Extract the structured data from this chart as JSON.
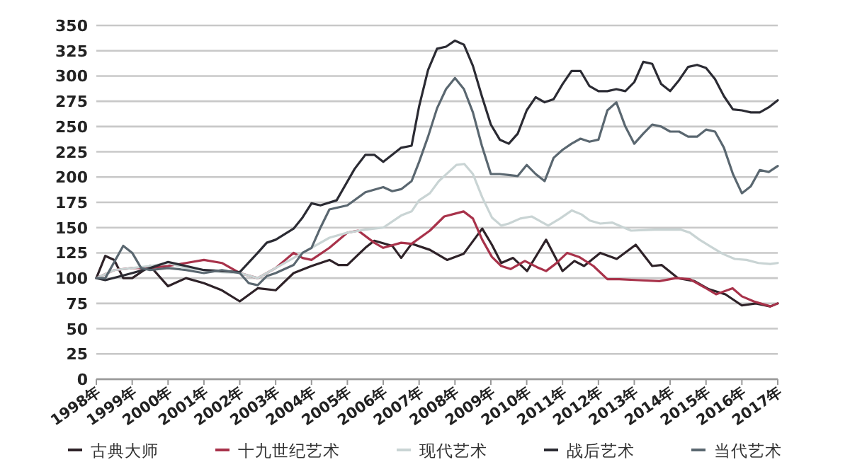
{
  "chart_data": {
    "type": "line",
    "xlim": [
      1998,
      2017
    ],
    "ylim": [
      0,
      350
    ],
    "yticks": [
      0,
      25,
      50,
      75,
      100,
      125,
      150,
      175,
      200,
      225,
      250,
      275,
      300,
      325,
      350
    ],
    "xticks": [
      {
        "value": 1998,
        "label": "1998年"
      },
      {
        "value": 1999,
        "label": "1999年"
      },
      {
        "value": 2000,
        "label": "2000年"
      },
      {
        "value": 2001,
        "label": "2001年"
      },
      {
        "value": 2002,
        "label": "2002年"
      },
      {
        "value": 2003,
        "label": "2003年"
      },
      {
        "value": 2004,
        "label": "2004年"
      },
      {
        "value": 2005,
        "label": "2005年"
      },
      {
        "value": 2006,
        "label": "2006年"
      },
      {
        "value": 2007,
        "label": "2007年"
      },
      {
        "value": 2008,
        "label": "2008年"
      },
      {
        "value": 2009,
        "label": "2009年"
      },
      {
        "value": 2010,
        "label": "2010年"
      },
      {
        "value": 2011,
        "label": "2011年"
      },
      {
        "value": 2012,
        "label": "2012年"
      },
      {
        "value": 2013,
        "label": "2013年"
      },
      {
        "value": 2014,
        "label": "2014年"
      },
      {
        "value": 2015,
        "label": "2015年"
      },
      {
        "value": 2016,
        "label": "2016年"
      },
      {
        "value": 2017,
        "label": "2017年"
      }
    ],
    "grid": "y",
    "legend": "bottom",
    "marker": "none",
    "line_style": "solid",
    "series": [
      {
        "name": "古典大师",
        "color": "#2e2228",
        "x": [
          1998,
          1998.25,
          1998.5,
          1998.75,
          1999,
          1999.5,
          2000,
          2000.5,
          2001,
          2001.5,
          2002,
          2002.5,
          2003,
          2003.5,
          2004,
          2004.5,
          2004.75,
          2005,
          2005.5,
          2005.75,
          2006.25,
          2006.5,
          2006.79,
          2007.3,
          2007.78,
          2008.24,
          2008.76,
          2009.03,
          2009.29,
          2009.62,
          2010.01,
          2010.54,
          2011,
          2011.33,
          2011.6,
          2012.05,
          2012.51,
          2013.04,
          2013.5,
          2013.76,
          2014.22,
          2014.68,
          2015.08,
          2015.54,
          2016,
          2016.39,
          2016.79,
          2017
        ],
        "values": [
          100,
          122,
          118,
          100,
          100,
          112,
          92,
          100,
          95,
          88,
          77,
          90,
          88,
          105,
          112,
          118,
          113,
          113,
          130,
          137,
          132,
          120,
          134,
          128,
          118,
          124,
          149,
          133,
          115,
          120,
          107,
          138,
          107,
          117,
          112,
          125,
          119,
          133,
          112,
          113,
          100,
          97,
          89,
          84,
          73,
          75,
          72,
          75
        ]
      },
      {
        "name": "十九世纪艺术",
        "color": "#a8324a",
        "x": [
          1998,
          1998.5,
          1999,
          1999.5,
          2000,
          2000.5,
          2001,
          2001.5,
          2002,
          2002.5,
          2003,
          2003.5,
          2003.75,
          2004,
          2004.5,
          2005,
          2005.3,
          2005.75,
          2006,
          2006.5,
          2006.79,
          2007.3,
          2007.7,
          2008.24,
          2008.5,
          2008.76,
          2009.03,
          2009.29,
          2009.55,
          2009.95,
          2010.28,
          2010.54,
          2010.8,
          2011.13,
          2011.46,
          2011.86,
          2012.25,
          2012.58,
          2013.1,
          2013.7,
          2014.16,
          2014.55,
          2014.95,
          2015.28,
          2015.74,
          2016,
          2016.33,
          2016.8,
          2017
        ],
        "values": [
          100,
          108,
          110,
          110,
          112,
          115,
          118,
          115,
          105,
          100,
          110,
          125,
          120,
          118,
          130,
          145,
          147,
          135,
          130,
          135,
          134,
          147,
          161,
          166,
          159,
          138,
          121,
          112,
          109,
          117,
          111,
          107,
          114,
          125,
          121,
          112,
          99,
          99,
          98,
          97,
          100,
          99,
          91,
          84,
          90,
          82,
          77,
          72,
          75
        ]
      },
      {
        "name": "现代艺术",
        "color": "#c9d4d4",
        "x": [
          1998,
          1998.5,
          1999,
          1999.5,
          2000,
          2000.5,
          2001,
          2001.5,
          2002,
          2002.5,
          2003,
          2003.5,
          2004,
          2004.5,
          2005,
          2005.5,
          2006,
          2006.5,
          2006.79,
          2007,
          2007.3,
          2007.55,
          2008.04,
          2008.26,
          2008.5,
          2008.76,
          2009.03,
          2009.29,
          2009.5,
          2009.82,
          2010.14,
          2010.34,
          2010.6,
          2010.93,
          2011.26,
          2011.53,
          2011.76,
          2012.05,
          2012.38,
          2012.64,
          2012.91,
          2013.57,
          2014,
          2014.29,
          2014.55,
          2014.82,
          2015.14,
          2015.47,
          2015.8,
          2016.13,
          2016.46,
          2016.79,
          2017
        ],
        "values": [
          100,
          108,
          110,
          112,
          115,
          110,
          108,
          106,
          105,
          100,
          110,
          120,
          130,
          140,
          145,
          148,
          150,
          162,
          166,
          177,
          184,
          196,
          212,
          213,
          203,
          180,
          160,
          152,
          154,
          159,
          161,
          157,
          152,
          159,
          167,
          163,
          157,
          154,
          155,
          151,
          147,
          148,
          148,
          148,
          145,
          138,
          131,
          124,
          119,
          118,
          115,
          114,
          115
        ]
      },
      {
        "name": "战后艺术",
        "color": "#2b2b33",
        "x": [
          1998,
          1998.25,
          1999,
          1999.5,
          2000,
          2000.5,
          2001,
          2001.5,
          2002,
          2002.5,
          2002.75,
          2003,
          2003.5,
          2003.75,
          2004,
          2004.25,
          2004.7,
          2005.2,
          2005.5,
          2005.75,
          2006,
          2006.25,
          2006.5,
          2006.79,
          2007,
          2007.25,
          2007.5,
          2007.75,
          2008,
          2008.25,
          2008.5,
          2008.75,
          2009,
          2009.25,
          2009.5,
          2009.75,
          2010,
          2010.25,
          2010.5,
          2010.75,
          2011,
          2011.25,
          2011.5,
          2011.75,
          2012,
          2012.25,
          2012.5,
          2012.75,
          2013,
          2013.25,
          2013.5,
          2013.75,
          2014,
          2014.25,
          2014.5,
          2014.75,
          2015,
          2015.25,
          2015.5,
          2015.75,
          2016,
          2016.25,
          2016.5,
          2016.75,
          2017
        ],
        "values": [
          100,
          98,
          105,
          110,
          116,
          112,
          108,
          107,
          106,
          125,
          135,
          138,
          149,
          160,
          174,
          172,
          177,
          208,
          222,
          222,
          215,
          222,
          229,
          231,
          270,
          306,
          327,
          329,
          335,
          331,
          310,
          280,
          252,
          237,
          233,
          243,
          266,
          279,
          274,
          277,
          292,
          305,
          305,
          290,
          285,
          285,
          287,
          285,
          294,
          314,
          312,
          292,
          285,
          296,
          309,
          311,
          308,
          297,
          280,
          267,
          266,
          264,
          264,
          269,
          276
        ]
      },
      {
        "name": "当代艺术",
        "color": "#5a6770",
        "x": [
          1998,
          1998.25,
          1998.75,
          1999,
          1999.25,
          1999.5,
          2000,
          2000.5,
          2001,
          2001.5,
          2002,
          2002.25,
          2002.5,
          2002.75,
          2003,
          2003.5,
          2003.75,
          2004,
          2004.25,
          2004.5,
          2005,
          2005.5,
          2006,
          2006.25,
          2006.5,
          2006.79,
          2007,
          2007.25,
          2007.5,
          2007.75,
          2008,
          2008.25,
          2008.5,
          2008.75,
          2009,
          2009.25,
          2009.5,
          2009.75,
          2010,
          2010.25,
          2010.5,
          2010.75,
          2011,
          2011.25,
          2011.5,
          2011.75,
          2012,
          2012.25,
          2012.5,
          2012.75,
          2013,
          2013.25,
          2013.5,
          2013.75,
          2014,
          2014.25,
          2014.5,
          2014.75,
          2015,
          2015.25,
          2015.5,
          2015.75,
          2016,
          2016.25,
          2016.5,
          2016.75,
          2017
        ],
        "values": [
          100,
          100,
          132,
          125,
          110,
          108,
          110,
          108,
          105,
          108,
          105,
          95,
          93,
          102,
          105,
          113,
          125,
          130,
          150,
          168,
          172,
          185,
          190,
          186,
          188,
          196,
          215,
          240,
          268,
          287,
          298,
          287,
          264,
          231,
          203,
          203,
          202,
          201,
          212,
          203,
          196,
          219,
          227,
          233,
          238,
          235,
          237,
          266,
          274,
          250,
          233,
          243,
          252,
          250,
          245,
          245,
          240,
          240,
          247,
          245,
          229,
          203,
          184,
          191,
          207,
          205,
          211
        ]
      }
    ]
  }
}
